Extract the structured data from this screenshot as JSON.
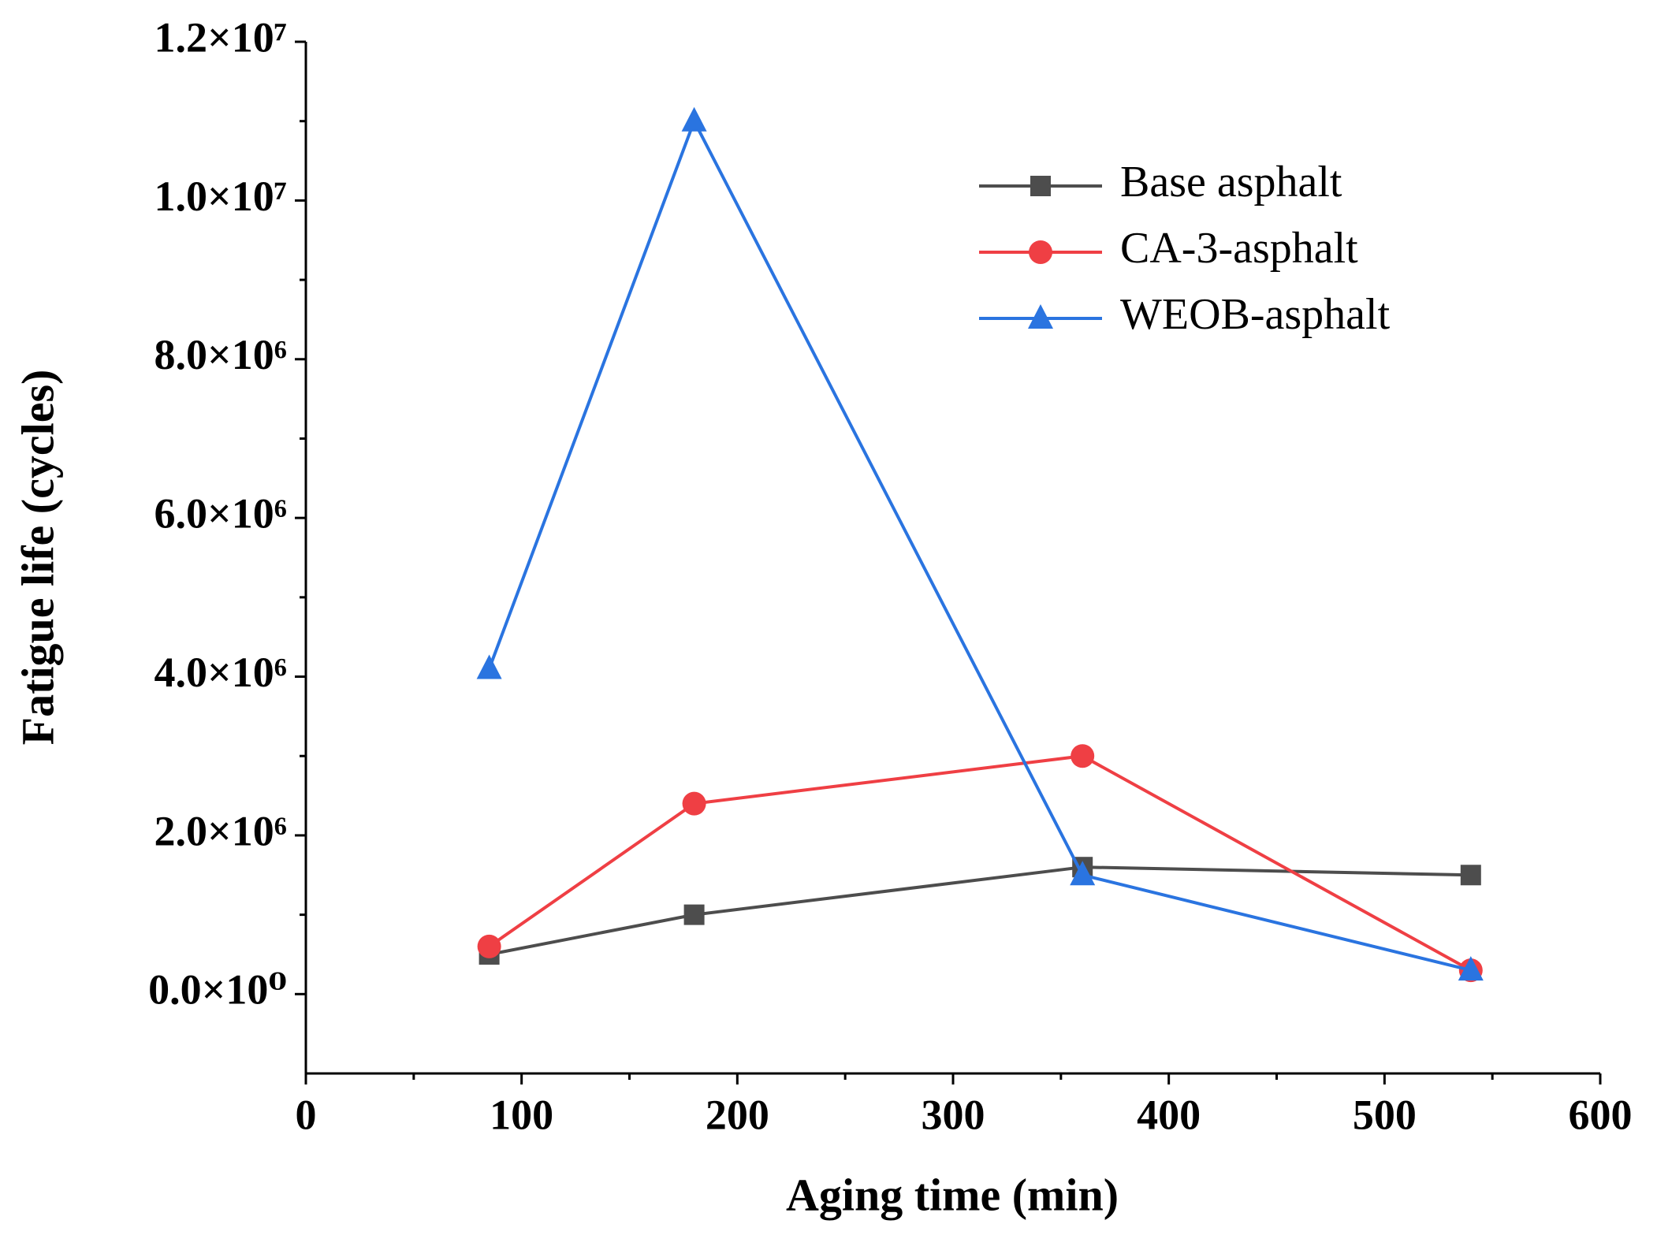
{
  "chart_data": {
    "type": "line",
    "xlabel": "Aging time (min)",
    "ylabel": "Fatigue life (cycles)",
    "x": [
      85,
      180,
      360,
      540
    ],
    "series": [
      {
        "name": "Base asphalt",
        "color": "#4d4d4d",
        "marker": "square",
        "values": [
          500000,
          1000000,
          1600000,
          1500000
        ]
      },
      {
        "name": "CA-3-asphalt",
        "color": "#ef3f44",
        "marker": "circle",
        "values": [
          600000,
          2400000,
          3000000,
          300000
        ]
      },
      {
        "name": "WEOB-asphalt",
        "color": "#2a74e0",
        "marker": "triangle",
        "values": [
          4100000,
          11000000,
          1500000,
          300000
        ]
      }
    ],
    "xlim": [
      0,
      600
    ],
    "xticks": [
      0,
      100,
      200,
      300,
      400,
      500,
      600
    ],
    "xminorticks": [
      50,
      150,
      250,
      350,
      450,
      550
    ],
    "ylim": [
      -1000000,
      12000000
    ],
    "yticks": [
      {
        "value": 0,
        "label": "0.0×10⁰"
      },
      {
        "value": 2000000,
        "label": "2.0×10⁶"
      },
      {
        "value": 4000000,
        "label": "4.0×10⁶"
      },
      {
        "value": 6000000,
        "label": "6.0×10⁶"
      },
      {
        "value": 8000000,
        "label": "8.0×10⁶"
      },
      {
        "value": 10000000,
        "label": "1.0×10⁷"
      },
      {
        "value": 12000000,
        "label": "1.2×10⁷"
      }
    ],
    "yminorticks": [
      1000000,
      3000000,
      5000000,
      7000000,
      9000000,
      11000000
    ],
    "grid": false,
    "legend": "upper right"
  }
}
